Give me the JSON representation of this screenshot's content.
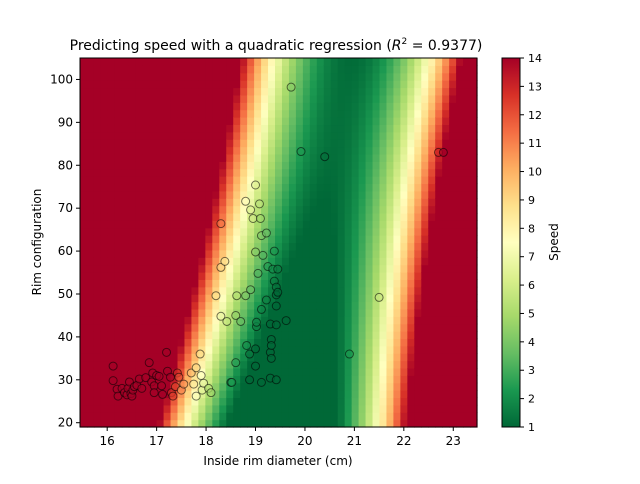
{
  "chart_data": {
    "type": "heatmap",
    "title": "Predicting speed with a quadratic regression (R² = 0.9377)",
    "title_text": "Predicting speed with a quadratic regression (",
    "title_r2_symbol": "R",
    "title_r2_sup": "2",
    "title_r2_value": " = 0.9377)",
    "xlabel": "Inside rim diameter (cm)",
    "ylabel": "Rim configuration",
    "colorbar_label": "Speed",
    "colormap": "RdYlGn_r",
    "xlim": [
      15.45,
      23.48
    ],
    "ylim": [
      19.0,
      105.0
    ],
    "clim": [
      1,
      14
    ],
    "x_ticks": [
      16,
      17,
      18,
      19,
      20,
      21,
      22,
      23
    ],
    "y_ticks": [
      20,
      30,
      40,
      50,
      60,
      70,
      80,
      90,
      100
    ],
    "colorbar_ticks": [
      1,
      2,
      3,
      4,
      5,
      6,
      7,
      8,
      9,
      10,
      11,
      12,
      13,
      14
    ],
    "grid": false,
    "legend": "none",
    "colors": {
      "stops": [
        "#006837",
        "#1a9850",
        "#66bd63",
        "#a6d96a",
        "#d9ef8b",
        "#ffffbf",
        "#fee08b",
        "#fdae61",
        "#f46d43",
        "#d73027",
        "#a50026"
      ],
      "point_edge": "#000000"
    },
    "points": [
      {
        "x": 16.12,
        "y": 33.2
      },
      {
        "x": 16.12,
        "y": 29.8
      },
      {
        "x": 16.2,
        "y": 27.8
      },
      {
        "x": 16.22,
        "y": 26.2
      },
      {
        "x": 16.3,
        "y": 28.0
      },
      {
        "x": 16.35,
        "y": 27.0
      },
      {
        "x": 16.4,
        "y": 26.5
      },
      {
        "x": 16.42,
        "y": 28.0
      },
      {
        "x": 16.45,
        "y": 29.5
      },
      {
        "x": 16.48,
        "y": 26.8
      },
      {
        "x": 16.5,
        "y": 26.2
      },
      {
        "x": 16.52,
        "y": 27.6
      },
      {
        "x": 16.55,
        "y": 28.4
      },
      {
        "x": 16.6,
        "y": 28.7
      },
      {
        "x": 16.65,
        "y": 30.2
      },
      {
        "x": 16.7,
        "y": 28.0
      },
      {
        "x": 16.78,
        "y": 30.5
      },
      {
        "x": 16.85,
        "y": 34.0
      },
      {
        "x": 16.9,
        "y": 29.5
      },
      {
        "x": 16.92,
        "y": 31.6
      },
      {
        "x": 16.95,
        "y": 28.6
      },
      {
        "x": 16.95,
        "y": 27.0
      },
      {
        "x": 17.0,
        "y": 31.0
      },
      {
        "x": 17.05,
        "y": 30.8
      },
      {
        "x": 17.1,
        "y": 28.6
      },
      {
        "x": 17.12,
        "y": 26.6
      },
      {
        "x": 17.2,
        "y": 36.4
      },
      {
        "x": 17.22,
        "y": 32.0
      },
      {
        "x": 17.28,
        "y": 30.6
      },
      {
        "x": 17.3,
        "y": 27.0
      },
      {
        "x": 17.33,
        "y": 26.2
      },
      {
        "x": 17.38,
        "y": 28.4
      },
      {
        "x": 17.42,
        "y": 31.6
      },
      {
        "x": 17.45,
        "y": 30.6
      },
      {
        "x": 17.5,
        "y": 27.6
      },
      {
        "x": 17.55,
        "y": 29.0
      },
      {
        "x": 17.7,
        "y": 31.6
      },
      {
        "x": 17.75,
        "y": 29.0
      },
      {
        "x": 17.8,
        "y": 32.8
      },
      {
        "x": 17.8,
        "y": 26.2
      },
      {
        "x": 17.88,
        "y": 36.0
      },
      {
        "x": 17.9,
        "y": 31.0
      },
      {
        "x": 17.92,
        "y": 27.6
      },
      {
        "x": 17.95,
        "y": 29.2
      },
      {
        "x": 18.05,
        "y": 28.0
      },
      {
        "x": 18.1,
        "y": 27.0
      },
      {
        "x": 18.2,
        "y": 49.6
      },
      {
        "x": 18.3,
        "y": 44.8
      },
      {
        "x": 18.3,
        "y": 56.2
      },
      {
        "x": 18.3,
        "y": 66.4
      },
      {
        "x": 18.38,
        "y": 57.6
      },
      {
        "x": 18.42,
        "y": 43.6
      },
      {
        "x": 18.5,
        "y": 29.4
      },
      {
        "x": 18.52,
        "y": 29.4
      },
      {
        "x": 18.6,
        "y": 45.0
      },
      {
        "x": 18.62,
        "y": 49.6
      },
      {
        "x": 18.6,
        "y": 34.0
      },
      {
        "x": 18.7,
        "y": 43.6
      },
      {
        "x": 18.8,
        "y": 49.6
      },
      {
        "x": 18.8,
        "y": 71.6
      },
      {
        "x": 18.82,
        "y": 38.0
      },
      {
        "x": 18.88,
        "y": 36.0
      },
      {
        "x": 18.88,
        "y": 30.0
      },
      {
        "x": 18.9,
        "y": 69.6
      },
      {
        "x": 18.9,
        "y": 51.0
      },
      {
        "x": 18.95,
        "y": 67.6
      },
      {
        "x": 19.0,
        "y": 75.4
      },
      {
        "x": 19.02,
        "y": 42.4
      },
      {
        "x": 19.02,
        "y": 43.4
      },
      {
        "x": 19.0,
        "y": 37.2
      },
      {
        "x": 19.0,
        "y": 33.2
      },
      {
        "x": 19.0,
        "y": 59.8
      },
      {
        "x": 19.05,
        "y": 54.8
      },
      {
        "x": 19.08,
        "y": 71.0
      },
      {
        "x": 19.1,
        "y": 67.6
      },
      {
        "x": 19.12,
        "y": 63.6
      },
      {
        "x": 19.12,
        "y": 46.4
      },
      {
        "x": 19.12,
        "y": 29.4
      },
      {
        "x": 19.15,
        "y": 59.0
      },
      {
        "x": 19.22,
        "y": 64.2
      },
      {
        "x": 19.22,
        "y": 48.6
      },
      {
        "x": 19.25,
        "y": 56.4
      },
      {
        "x": 19.3,
        "y": 43.0
      },
      {
        "x": 19.3,
        "y": 36.4
      },
      {
        "x": 19.3,
        "y": 30.4
      },
      {
        "x": 19.32,
        "y": 39.4
      },
      {
        "x": 19.32,
        "y": 38.0
      },
      {
        "x": 19.32,
        "y": 35.0
      },
      {
        "x": 19.35,
        "y": 55.8
      },
      {
        "x": 19.38,
        "y": 53.0
      },
      {
        "x": 19.38,
        "y": 60.0
      },
      {
        "x": 19.42,
        "y": 51.6
      },
      {
        "x": 19.42,
        "y": 49.8
      },
      {
        "x": 19.42,
        "y": 47.2
      },
      {
        "x": 19.42,
        "y": 42.8
      },
      {
        "x": 19.42,
        "y": 30.0
      },
      {
        "x": 19.45,
        "y": 55.8
      },
      {
        "x": 19.45,
        "y": 50.4
      },
      {
        "x": 19.62,
        "y": 43.8
      },
      {
        "x": 19.72,
        "y": 98.2
      },
      {
        "x": 19.92,
        "y": 83.2
      },
      {
        "x": 20.4,
        "y": 82.0
      },
      {
        "x": 20.9,
        "y": 36.0
      },
      {
        "x": 21.5,
        "y": 49.2
      },
      {
        "x": 22.7,
        "y": 83.0
      },
      {
        "x": 22.8,
        "y": 83.0
      }
    ]
  }
}
